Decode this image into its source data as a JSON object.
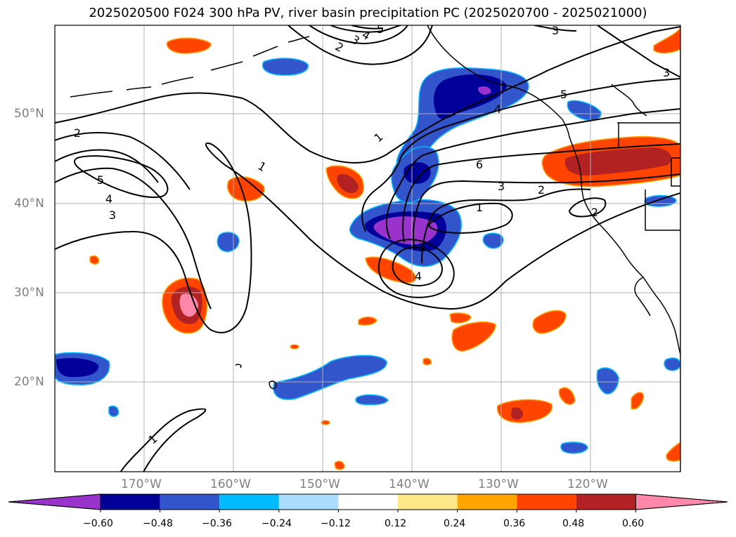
{
  "title": "2025020500 F024 300 hPa PV, river basin precipitation PC (2025020700 - 2025021000)",
  "latitude_labels": [
    "50°N",
    "40°N",
    "30°N",
    "20°N"
  ],
  "longitude_labels": [
    "170°W",
    "160°W",
    "150°W",
    "140°W",
    "130°W",
    "120°W"
  ],
  "colorbar": {
    "tick_labels": [
      "−0.60",
      "−0.48",
      "−0.36",
      "−0.24",
      "−0.12",
      "0.12",
      "0.24",
      "0.36",
      "0.48",
      "0.60"
    ],
    "colors": [
      "#9933cc",
      "#000099",
      "#3355cc",
      "#00bbff",
      "#aaddff",
      "#ffffff",
      "#ffe88a",
      "#ffa500",
      "#ff4400",
      "#b22222",
      "#ff88aa"
    ]
  },
  "contour_labels": [
    "1",
    "1",
    "1",
    "1",
    "2",
    "2",
    "2",
    "2",
    "3",
    "3",
    "3",
    "3",
    "3",
    "3",
    "4",
    "4",
    "4",
    "4",
    "5",
    "5",
    "5",
    "6"
  ],
  "colors": {
    "land_line": "#000000",
    "grid": "#b0b0b0",
    "contour": "#000000"
  }
}
